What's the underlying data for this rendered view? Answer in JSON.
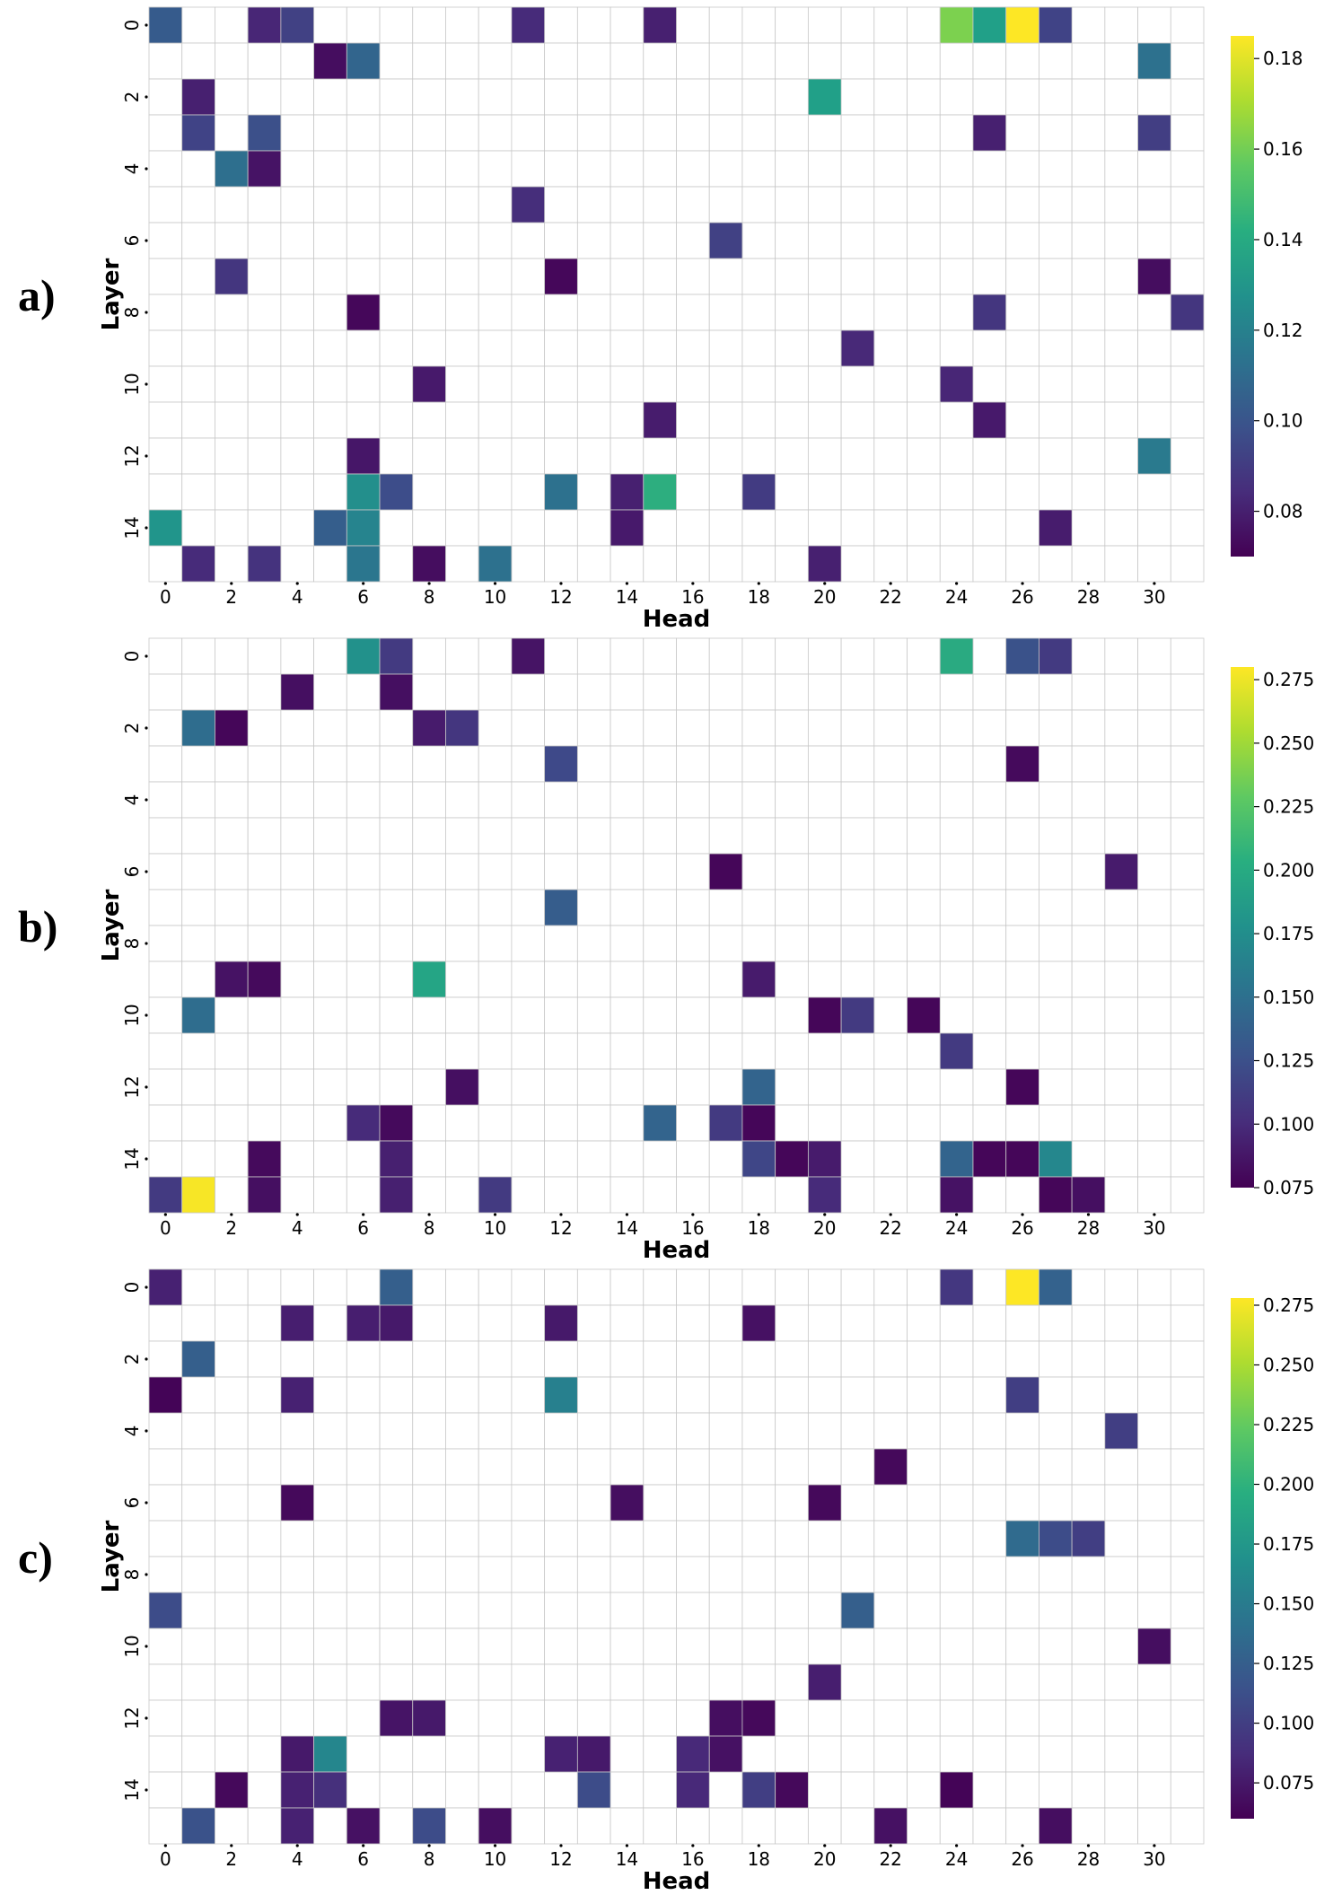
{
  "chart_data": [
    {
      "type": "heatmap",
      "panel_label": "a)",
      "xlabel": "Head",
      "ylabel": "Layer",
      "x_ticks": [
        "0",
        "2",
        "4",
        "6",
        "8",
        "10",
        "12",
        "14",
        "16",
        "18",
        "20",
        "22",
        "24",
        "26",
        "28",
        "30"
      ],
      "y_ticks": [
        "0",
        "2",
        "4",
        "6",
        "8",
        "10",
        "12",
        "14"
      ],
      "n_rows": 16,
      "n_cols": 32,
      "colormap": "viridis",
      "vmin": 0.07,
      "vmax": 0.185,
      "colorbar_ticks": [
        "0.08",
        "0.10",
        "0.12",
        "0.14",
        "0.16",
        "0.18"
      ],
      "cells": [
        [
          0,
          0,
          0.103
        ],
        [
          0,
          3,
          0.082
        ],
        [
          0,
          4,
          0.092
        ],
        [
          0,
          11,
          0.084
        ],
        [
          0,
          15,
          0.08
        ],
        [
          0,
          24,
          0.162
        ],
        [
          0,
          25,
          0.135
        ],
        [
          0,
          26,
          0.185
        ],
        [
          0,
          27,
          0.093
        ],
        [
          1,
          5,
          0.074
        ],
        [
          1,
          6,
          0.107
        ],
        [
          1,
          30,
          0.113
        ],
        [
          2,
          1,
          0.08
        ],
        [
          2,
          20,
          0.135
        ],
        [
          3,
          1,
          0.093
        ],
        [
          3,
          3,
          0.098
        ],
        [
          3,
          25,
          0.08
        ],
        [
          3,
          30,
          0.091
        ],
        [
          4,
          2,
          0.112
        ],
        [
          4,
          3,
          0.076
        ],
        [
          5,
          11,
          0.085
        ],
        [
          6,
          17,
          0.092
        ],
        [
          7,
          2,
          0.088
        ],
        [
          7,
          12,
          0.072
        ],
        [
          7,
          30,
          0.074
        ],
        [
          8,
          6,
          0.072
        ],
        [
          8,
          25,
          0.088
        ],
        [
          8,
          31,
          0.088
        ],
        [
          9,
          21,
          0.083
        ],
        [
          10,
          8,
          0.078
        ],
        [
          10,
          24,
          0.082
        ],
        [
          11,
          15,
          0.079
        ],
        [
          11,
          25,
          0.078
        ],
        [
          12,
          6,
          0.077
        ],
        [
          12,
          30,
          0.117
        ],
        [
          13,
          6,
          0.127
        ],
        [
          13,
          7,
          0.097
        ],
        [
          13,
          12,
          0.113
        ],
        [
          13,
          14,
          0.08
        ],
        [
          13,
          15,
          0.142
        ],
        [
          13,
          18,
          0.09
        ],
        [
          14,
          0,
          0.13
        ],
        [
          14,
          5,
          0.104
        ],
        [
          14,
          6,
          0.122
        ],
        [
          14,
          14,
          0.078
        ],
        [
          14,
          27,
          0.079
        ],
        [
          15,
          1,
          0.084
        ],
        [
          15,
          3,
          0.087
        ],
        [
          15,
          6,
          0.115
        ],
        [
          15,
          8,
          0.074
        ],
        [
          15,
          10,
          0.113
        ],
        [
          15,
          20,
          0.08
        ]
      ]
    },
    {
      "type": "heatmap",
      "panel_label": "b)",
      "xlabel": "Head",
      "ylabel": "Layer",
      "x_ticks": [
        "0",
        "2",
        "4",
        "6",
        "8",
        "10",
        "12",
        "14",
        "16",
        "18",
        "20",
        "22",
        "24",
        "26",
        "28",
        "30"
      ],
      "y_ticks": [
        "0",
        "2",
        "4",
        "6",
        "8",
        "10",
        "12",
        "14"
      ],
      "n_rows": 16,
      "n_cols": 32,
      "colormap": "viridis",
      "vmin": 0.075,
      "vmax": 0.28,
      "colorbar_ticks": [
        "0.075",
        "0.100",
        "0.125",
        "0.150",
        "0.175",
        "0.200",
        "0.225",
        "0.250",
        "0.275"
      ],
      "cells": [
        [
          0,
          6,
          0.178
        ],
        [
          0,
          7,
          0.11
        ],
        [
          0,
          11,
          0.086
        ],
        [
          0,
          24,
          0.2
        ],
        [
          0,
          26,
          0.127
        ],
        [
          0,
          27,
          0.11
        ],
        [
          1,
          4,
          0.083
        ],
        [
          1,
          7,
          0.083
        ],
        [
          2,
          1,
          0.148
        ],
        [
          2,
          2,
          0.078
        ],
        [
          2,
          8,
          0.09
        ],
        [
          2,
          9,
          0.107
        ],
        [
          3,
          12,
          0.12
        ],
        [
          3,
          26,
          0.08
        ],
        [
          6,
          17,
          0.078
        ],
        [
          6,
          29,
          0.09
        ],
        [
          7,
          12,
          0.135
        ],
        [
          9,
          2,
          0.085
        ],
        [
          9,
          3,
          0.08
        ],
        [
          9,
          8,
          0.195
        ],
        [
          9,
          18,
          0.09
        ],
        [
          10,
          1,
          0.148
        ],
        [
          10,
          20,
          0.078
        ],
        [
          10,
          21,
          0.11
        ],
        [
          10,
          23,
          0.078
        ],
        [
          11,
          24,
          0.11
        ],
        [
          12,
          9,
          0.083
        ],
        [
          12,
          18,
          0.14
        ],
        [
          12,
          26,
          0.078
        ],
        [
          13,
          6,
          0.1
        ],
        [
          13,
          7,
          0.08
        ],
        [
          13,
          15,
          0.14
        ],
        [
          13,
          17,
          0.11
        ],
        [
          13,
          18,
          0.078
        ],
        [
          14,
          3,
          0.08
        ],
        [
          14,
          7,
          0.093
        ],
        [
          14,
          18,
          0.118
        ],
        [
          14,
          19,
          0.078
        ],
        [
          14,
          20,
          0.09
        ],
        [
          14,
          24,
          0.14
        ],
        [
          14,
          25,
          0.078
        ],
        [
          14,
          26,
          0.078
        ],
        [
          14,
          27,
          0.17
        ],
        [
          15,
          0,
          0.11
        ],
        [
          15,
          1,
          0.278
        ],
        [
          15,
          3,
          0.083
        ],
        [
          15,
          7,
          0.093
        ],
        [
          15,
          10,
          0.11
        ],
        [
          15,
          20,
          0.1
        ],
        [
          15,
          24,
          0.085
        ],
        [
          15,
          27,
          0.078
        ],
        [
          15,
          28,
          0.083
        ]
      ]
    },
    {
      "type": "heatmap",
      "panel_label": "c)",
      "xlabel": "Head",
      "ylabel": "Layer",
      "x_ticks": [
        "0",
        "2",
        "4",
        "6",
        "8",
        "10",
        "12",
        "14",
        "16",
        "18",
        "20",
        "22",
        "24",
        "26",
        "28",
        "30"
      ],
      "y_ticks": [
        "0",
        "2",
        "4",
        "6",
        "8",
        "10",
        "12",
        "14"
      ],
      "n_rows": 16,
      "n_cols": 32,
      "colormap": "viridis",
      "vmin": 0.06,
      "vmax": 0.278,
      "colorbar_ticks": [
        "0.075",
        "0.100",
        "0.125",
        "0.150",
        "0.175",
        "0.200",
        "0.225",
        "0.250",
        "0.275"
      ],
      "cells": [
        [
          0,
          0,
          0.08
        ],
        [
          0,
          7,
          0.125
        ],
        [
          0,
          24,
          0.095
        ],
        [
          0,
          26,
          0.278
        ],
        [
          0,
          27,
          0.128
        ],
        [
          1,
          4,
          0.078
        ],
        [
          1,
          6,
          0.078
        ],
        [
          1,
          7,
          0.075
        ],
        [
          1,
          12,
          0.075
        ],
        [
          1,
          18,
          0.07
        ],
        [
          2,
          1,
          0.125
        ],
        [
          3,
          0,
          0.062
        ],
        [
          3,
          4,
          0.08
        ],
        [
          3,
          12,
          0.155
        ],
        [
          3,
          26,
          0.1
        ],
        [
          4,
          29,
          0.1
        ],
        [
          5,
          22,
          0.065
        ],
        [
          6,
          4,
          0.065
        ],
        [
          6,
          14,
          0.068
        ],
        [
          6,
          20,
          0.065
        ],
        [
          7,
          26,
          0.135
        ],
        [
          7,
          27,
          0.11
        ],
        [
          7,
          28,
          0.1
        ],
        [
          9,
          0,
          0.11
        ],
        [
          9,
          21,
          0.125
        ],
        [
          10,
          30,
          0.068
        ],
        [
          11,
          20,
          0.078
        ],
        [
          12,
          7,
          0.072
        ],
        [
          12,
          8,
          0.075
        ],
        [
          12,
          17,
          0.068
        ],
        [
          12,
          18,
          0.065
        ],
        [
          13,
          4,
          0.075
        ],
        [
          13,
          5,
          0.16
        ],
        [
          13,
          12,
          0.08
        ],
        [
          13,
          13,
          0.075
        ],
        [
          13,
          16,
          0.085
        ],
        [
          13,
          17,
          0.07
        ],
        [
          14,
          2,
          0.065
        ],
        [
          14,
          4,
          0.08
        ],
        [
          14,
          5,
          0.09
        ],
        [
          14,
          13,
          0.11
        ],
        [
          14,
          16,
          0.085
        ],
        [
          14,
          18,
          0.1
        ],
        [
          14,
          19,
          0.065
        ],
        [
          14,
          24,
          0.062
        ],
        [
          15,
          1,
          0.115
        ],
        [
          15,
          4,
          0.08
        ],
        [
          15,
          6,
          0.07
        ],
        [
          15,
          8,
          0.11
        ],
        [
          15,
          10,
          0.068
        ],
        [
          15,
          22,
          0.07
        ],
        [
          15,
          27,
          0.068
        ]
      ]
    }
  ]
}
